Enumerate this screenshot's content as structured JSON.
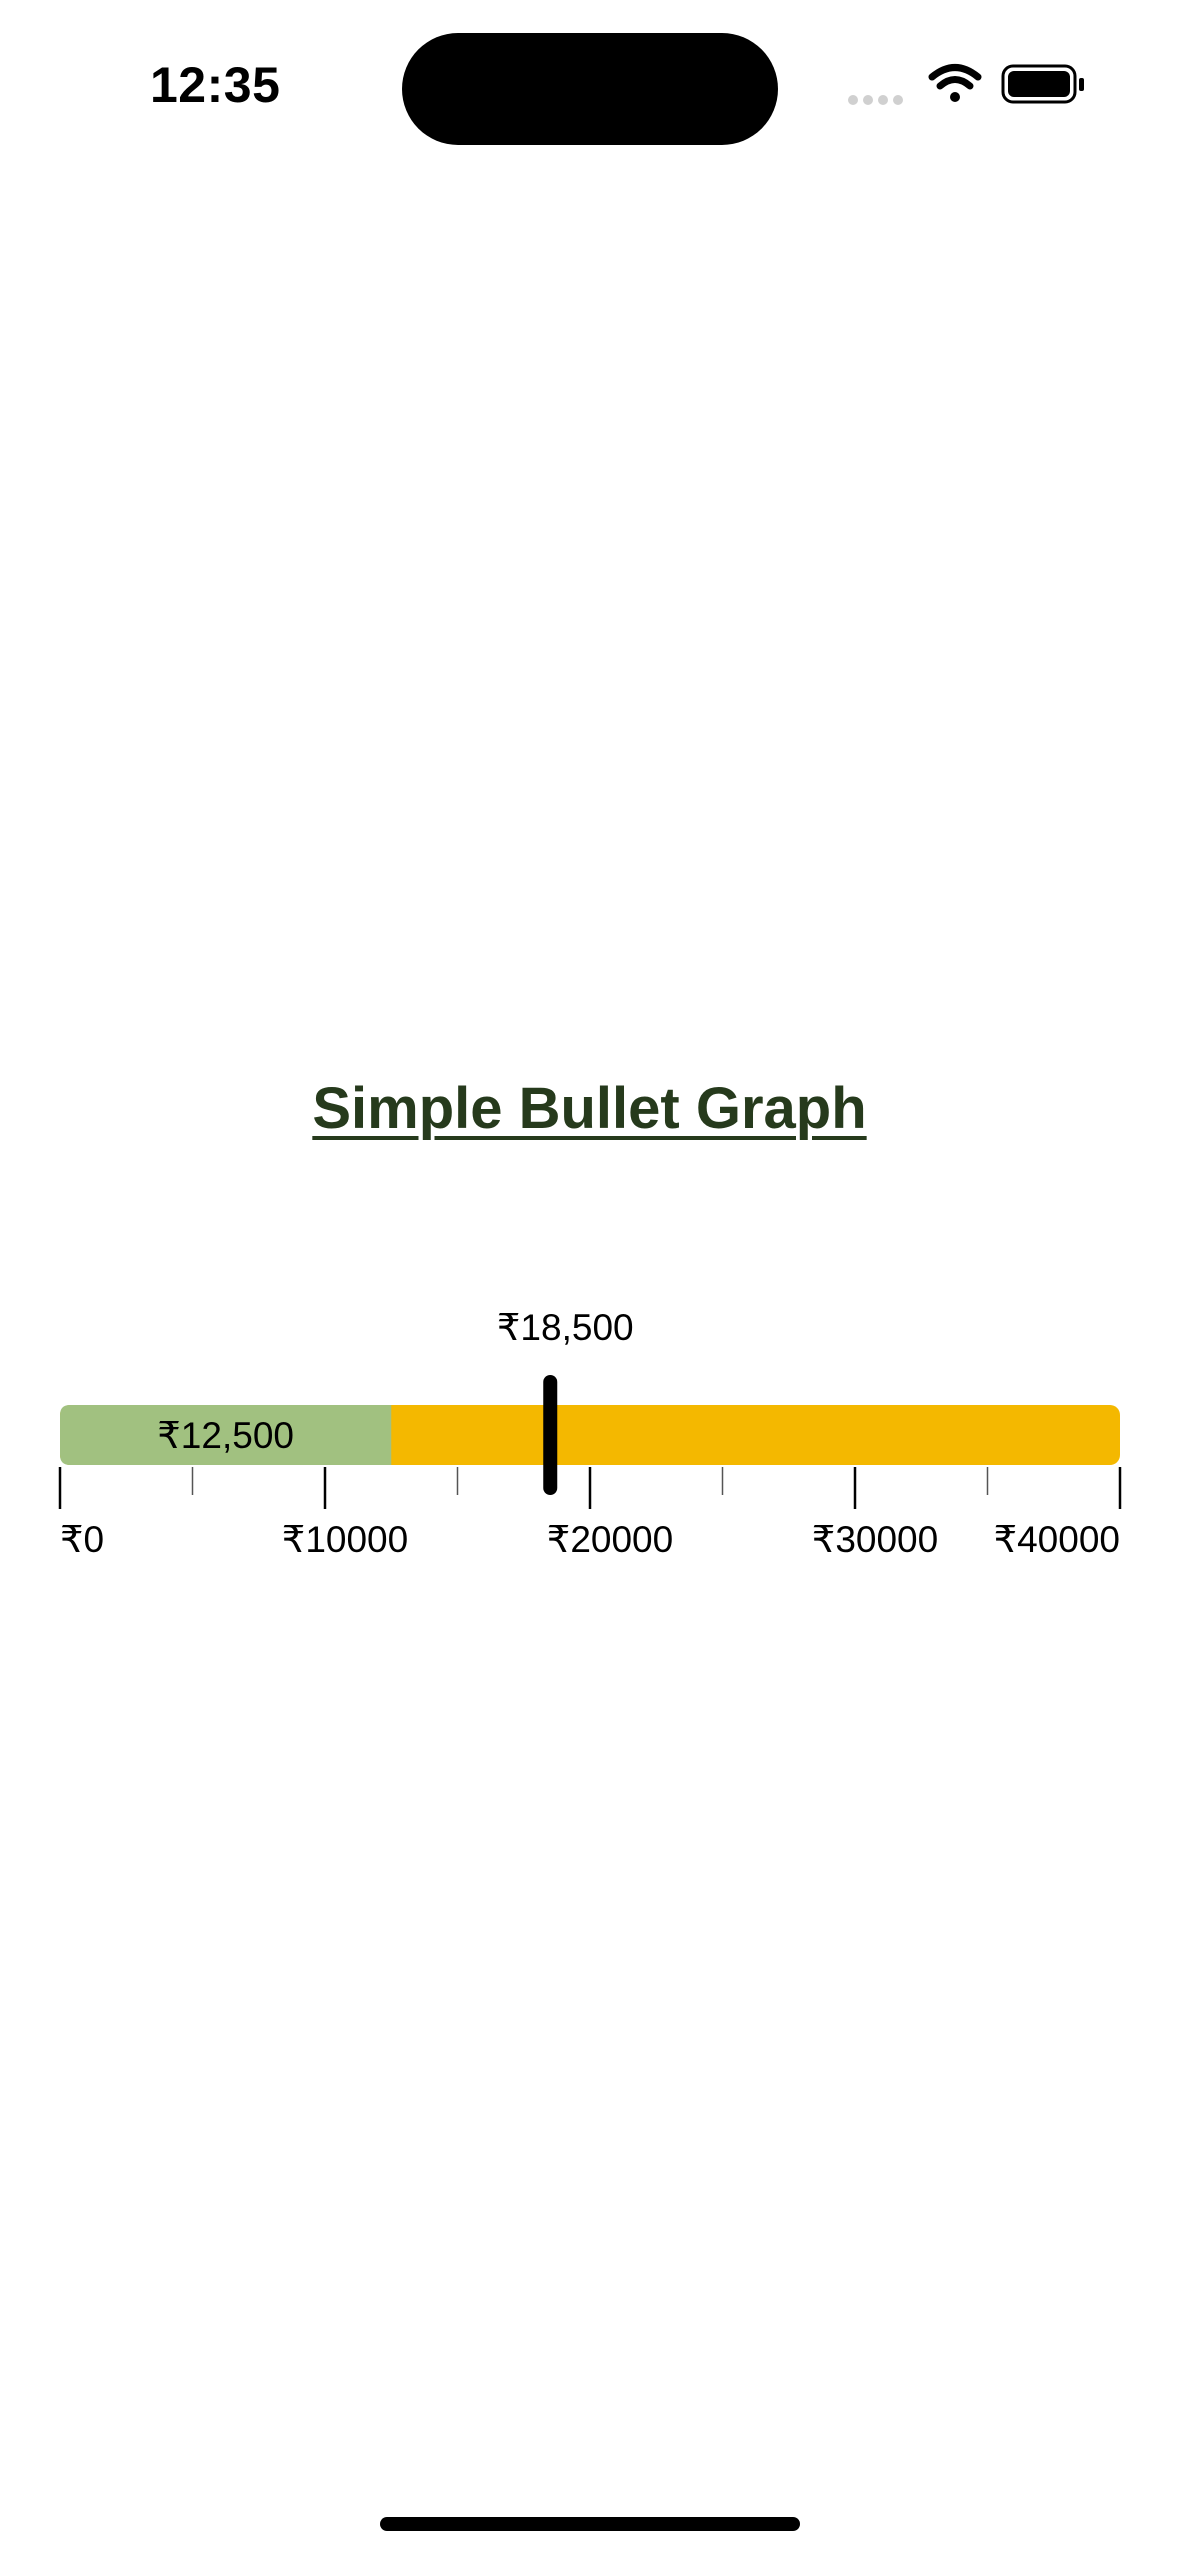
{
  "status_bar": {
    "time": "12:35",
    "icons": [
      "signal-dots-icon",
      "wifi-icon",
      "battery-icon"
    ]
  },
  "title": "Simple Bullet Graph",
  "chart_data": {
    "type": "bullet",
    "title": "Simple Bullet Graph",
    "xlim": [
      0,
      40000
    ],
    "ticks": {
      "major": [
        0,
        10000,
        20000,
        30000,
        40000
      ],
      "minor": [
        5000,
        15000,
        25000,
        35000
      ],
      "labels": [
        "₹0",
        "₹10000",
        "₹20000",
        "₹30000",
        "₹40000"
      ]
    },
    "range": {
      "from": 0,
      "to": 40000,
      "color": "#F4B800"
    },
    "value": {
      "value": 12500,
      "label": "₹12,500",
      "color": "#A1C180"
    },
    "target": {
      "value": 18500,
      "label": "₹18,500",
      "color": "#000000"
    },
    "grid": false,
    "legend": "none"
  },
  "colors": {
    "title": "#263A1C",
    "background": "#FFFFFF"
  }
}
